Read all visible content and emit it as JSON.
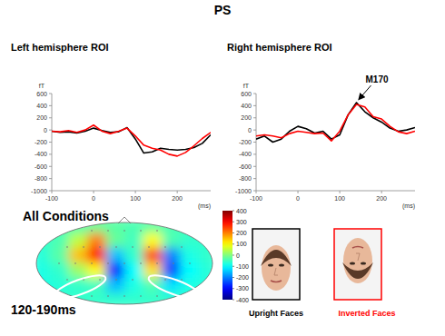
{
  "title": "PS",
  "chart_data": [
    {
      "type": "line",
      "title": "Left hemisphere ROI",
      "y_label": "fT",
      "x_label": "(ms)",
      "x": [
        -100,
        -80,
        -60,
        -40,
        -20,
        0,
        20,
        40,
        60,
        80,
        100,
        120,
        140,
        160,
        180,
        200,
        220,
        240,
        260,
        280
      ],
      "series": [
        {
          "color": "#000000",
          "values": [
            -20,
            -40,
            -30,
            -50,
            -20,
            30,
            -10,
            -40,
            -30,
            40,
            -150,
            -380,
            -360,
            -300,
            -320,
            -330,
            -320,
            -290,
            -220,
            -80
          ]
        },
        {
          "color": "#ff0000",
          "values": [
            -20,
            -30,
            -10,
            -40,
            0,
            80,
            -20,
            -60,
            -20,
            30,
            -100,
            -250,
            -300,
            -330,
            -400,
            -430,
            -370,
            -260,
            -140,
            -40
          ]
        }
      ],
      "xlim": [
        -100,
        280
      ],
      "xticks": [
        -100,
        0,
        100,
        200
      ],
      "ylim": [
        -1000,
        600
      ],
      "yticks": [
        -1000,
        -800,
        -600,
        -400,
        -200,
        0,
        200,
        400,
        600
      ],
      "grid": false
    },
    {
      "type": "line",
      "title": "Right hemisphere ROI",
      "y_label": "fT",
      "x_label": "(ms)",
      "x": [
        -100,
        -80,
        -60,
        -40,
        -20,
        0,
        20,
        40,
        60,
        80,
        100,
        120,
        140,
        160,
        180,
        200,
        220,
        240,
        260,
        280
      ],
      "series": [
        {
          "name": "Upright Faces",
          "color": "#000000",
          "values": [
            -150,
            -100,
            -200,
            -150,
            -20,
            60,
            20,
            -50,
            -20,
            -150,
            -80,
            250,
            450,
            300,
            200,
            130,
            30,
            -20,
            0,
            40
          ]
        },
        {
          "name": "Inverted Faces",
          "color": "#ff0000",
          "values": [
            -100,
            -80,
            -100,
            -130,
            -60,
            -20,
            -40,
            -60,
            -50,
            -180,
            -20,
            250,
            420,
            380,
            220,
            180,
            60,
            -30,
            -60,
            -20
          ]
        }
      ],
      "xlim": [
        -100,
        280
      ],
      "xticks": [
        -100,
        0,
        100,
        200
      ],
      "ylim": [
        -1000,
        600
      ],
      "yticks": [
        -1000,
        -800,
        -600,
        -400,
        -200,
        0,
        200,
        400,
        600
      ],
      "annotations": [
        {
          "text": "M170",
          "x": 140,
          "y": 450
        }
      ],
      "legend": "bottom",
      "grid": false
    },
    {
      "type": "heatmap",
      "title": "All Conditions",
      "subtitle": "120-190ms",
      "cells": [
        [
          -50,
          -50,
          -40,
          -20,
          -30,
          -40,
          -30,
          -40,
          -50,
          -60
        ],
        [
          -60,
          -40,
          50,
          200,
          -20,
          -50,
          100,
          -40,
          -60,
          -60
        ],
        [
          -70,
          -30,
          150,
          300,
          -150,
          -60,
          250,
          -200,
          -80,
          -60
        ],
        [
          -80,
          -60,
          20,
          100,
          -300,
          -100,
          120,
          -250,
          -100,
          -70
        ],
        [
          -80,
          -70,
          -60,
          -50,
          -150,
          -80,
          -40,
          -120,
          -80,
          -70
        ],
        [
          -70,
          -60,
          -60,
          -60,
          -60,
          -60,
          -60,
          -60,
          -60,
          -60
        ]
      ],
      "colorbar_lim": [
        -400,
        400
      ],
      "colorbar_ticks": [
        400,
        300,
        200,
        100,
        0,
        -100,
        -200,
        -300,
        -400
      ],
      "tick_labels": false
    }
  ]
}
